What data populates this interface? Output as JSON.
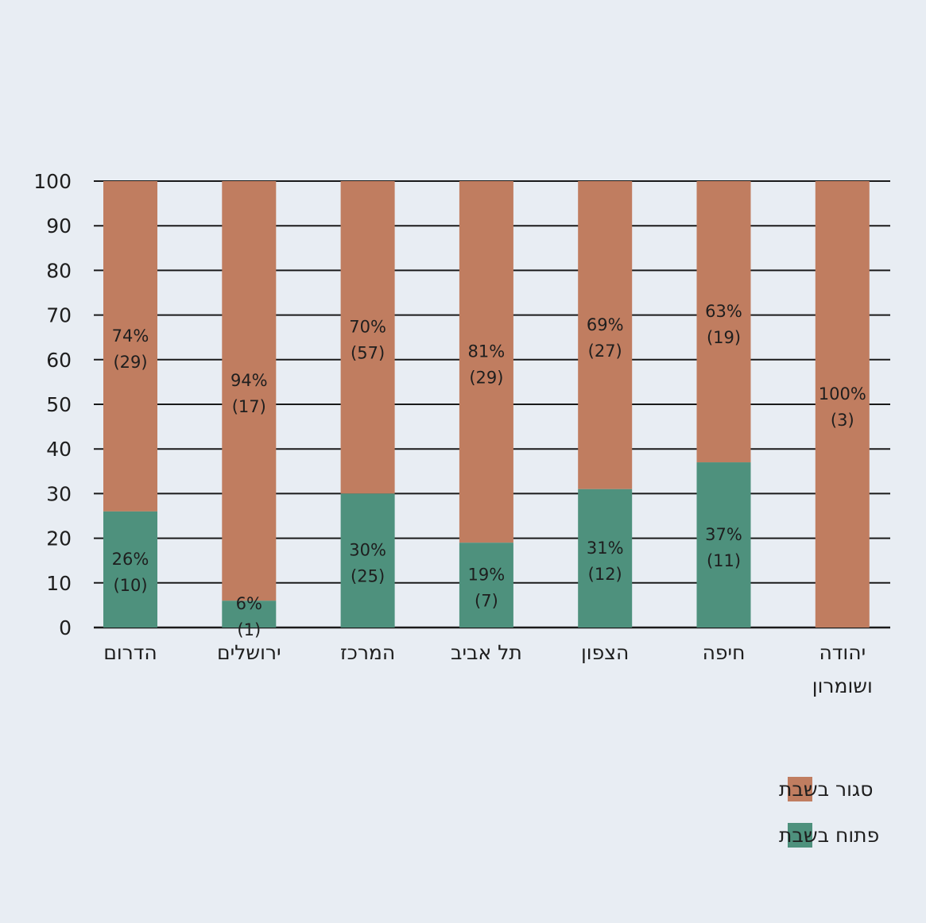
{
  "chart_data": {
    "type": "bar",
    "stacked": true,
    "categories": [
      [
        "הדרום"
      ],
      [
        "ירושלים"
      ],
      [
        "המרכז"
      ],
      [
        "תל אביב"
      ],
      [
        "הצפון"
      ],
      [
        "חיפה"
      ],
      [
        "יהודה",
        "ושומרון"
      ]
    ],
    "series": [
      {
        "name": "פתוח בשבת",
        "color": "#4e917d",
        "values": [
          26,
          6,
          30,
          19,
          31,
          37,
          0
        ],
        "labels": [
          "26%",
          "6%",
          "30%",
          "19%",
          "31%",
          "37%",
          ""
        ],
        "counts": [
          "(10)",
          "(1)",
          "(25)",
          "(7)",
          "(12)",
          "(11)",
          ""
        ]
      },
      {
        "name": "סגור בשבת",
        "color": "#c07d60",
        "values": [
          74,
          94,
          70,
          81,
          69,
          63,
          100
        ],
        "labels": [
          "74%",
          "94%",
          "70%",
          "81%",
          "69%",
          "63%",
          "100%"
        ],
        "counts": [
          "(29)",
          "(17)",
          "(57)",
          "(29)",
          "(27)",
          "(19)",
          "(3)"
        ]
      }
    ],
    "yticks": [
      "0",
      "10",
      "20",
      "30",
      "40",
      "50",
      "60",
      "70",
      "80",
      "90",
      "100"
    ],
    "ylim": [
      0,
      100
    ],
    "grid": true,
    "legend": {
      "position": "bottom-right",
      "order": [
        1,
        0
      ]
    }
  }
}
